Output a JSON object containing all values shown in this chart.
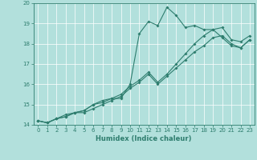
{
  "x_values": [
    0,
    1,
    2,
    3,
    4,
    5,
    6,
    7,
    8,
    9,
    10,
    11,
    12,
    13,
    14,
    15,
    16,
    17,
    18,
    19,
    20,
    21,
    22,
    23
  ],
  "line1": [
    14.2,
    14.1,
    14.3,
    14.5,
    14.6,
    14.7,
    15.0,
    15.2,
    15.3,
    15.3,
    16.0,
    18.5,
    19.1,
    18.9,
    19.8,
    19.4,
    18.8,
    18.9,
    18.7,
    18.7,
    18.3,
    17.9,
    17.8,
    18.2
  ],
  "line2": [
    14.2,
    14.1,
    14.3,
    14.4,
    14.6,
    14.6,
    14.8,
    15.0,
    15.2,
    15.4,
    15.8,
    16.1,
    16.5,
    16.0,
    16.4,
    16.8,
    17.2,
    17.6,
    17.9,
    18.3,
    18.4,
    18.0,
    17.8,
    18.2
  ],
  "line3": [
    14.2,
    14.1,
    14.3,
    14.4,
    14.6,
    14.7,
    15.0,
    15.1,
    15.3,
    15.5,
    15.9,
    16.2,
    16.6,
    16.1,
    16.5,
    17.0,
    17.5,
    18.0,
    18.4,
    18.7,
    18.8,
    18.2,
    18.1,
    18.4
  ],
  "line_color": "#2e7d6e",
  "bg_color": "#b2e0dc",
  "grid_color": "#ffffff",
  "xlabel": "Humidex (Indice chaleur)",
  "ylim": [
    14,
    20
  ],
  "xlim": [
    -0.5,
    23.5
  ],
  "x_ticks": [
    0,
    1,
    2,
    3,
    4,
    5,
    6,
    7,
    8,
    9,
    10,
    11,
    12,
    13,
    14,
    15,
    16,
    17,
    18,
    19,
    20,
    21,
    22,
    23
  ],
  "y_ticks": [
    14,
    15,
    16,
    17,
    18,
    19,
    20
  ],
  "tick_fontsize": 5.0,
  "xlabel_fontsize": 6.0
}
